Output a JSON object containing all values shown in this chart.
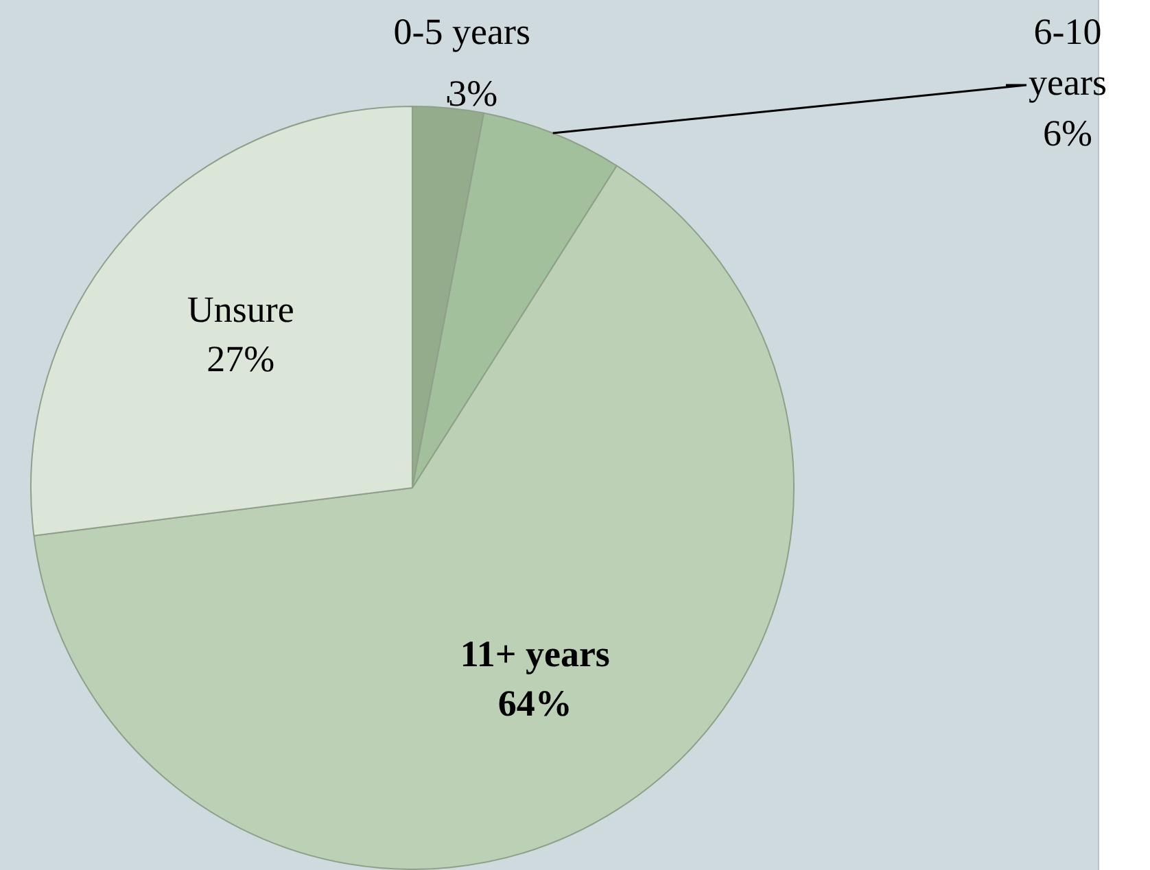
{
  "chart_data": {
    "type": "pie",
    "categories": [
      "0-5 years",
      "6-10 years",
      "11+ years",
      "Unsure"
    ],
    "values": [
      3,
      6,
      64,
      27
    ],
    "value_labels": [
      "3%",
      "6%",
      "64%",
      "27%"
    ],
    "colors": [
      "#94ab8c",
      "#a3c09c",
      "#bcd0b5",
      "#dbe5d8"
    ],
    "legend": false
  }
}
